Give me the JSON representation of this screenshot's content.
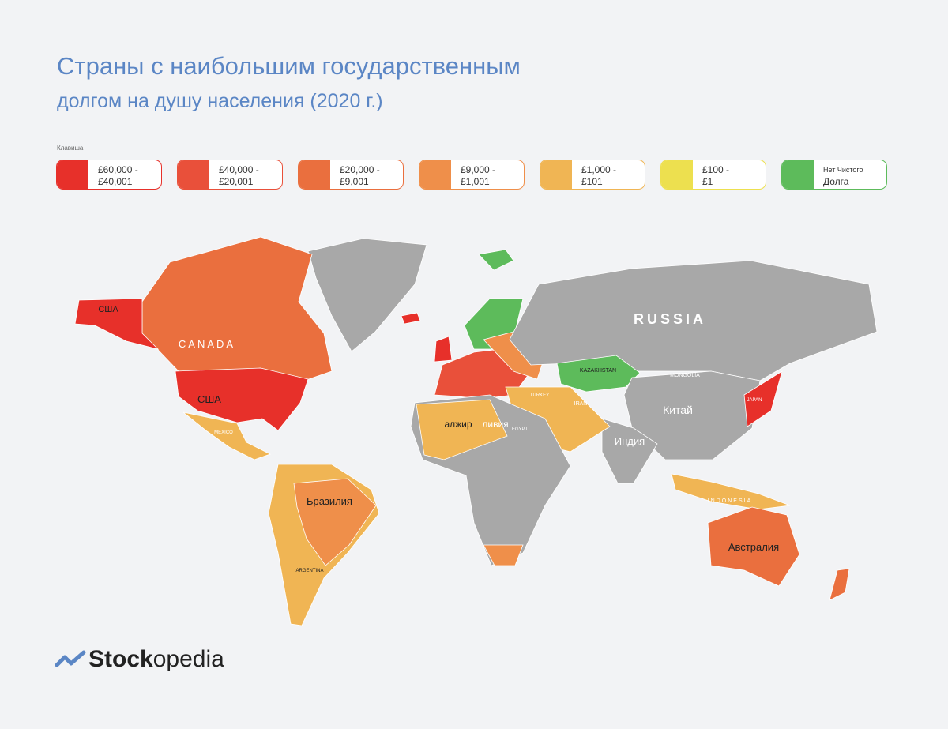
{
  "header": {
    "title": "Страны с наибольшим государственным",
    "subtitle": "долгом на душу населения (2020 г.)"
  },
  "legend": {
    "caption": "Клавиша",
    "items": [
      {
        "lines": [
          "£60,000 -",
          "£40,001"
        ],
        "color": "#e7302a"
      },
      {
        "lines": [
          "£40,000 -",
          "£20,001"
        ],
        "color": "#e9503a"
      },
      {
        "lines": [
          "£20,000 -",
          "£9,001"
        ],
        "color": "#ea6f3e"
      },
      {
        "lines": [
          "£9,000 -",
          "£1,001"
        ],
        "color": "#ef8f4a"
      },
      {
        "lines": [
          "£1,000 -",
          "£101"
        ],
        "color": "#f0b554"
      },
      {
        "lines": [
          "£100 -",
          "£1"
        ],
        "color": "#ede04f"
      },
      {
        "lines": [
          "Нет Чистого",
          "Долга"
        ],
        "color": "#5dbb5b"
      }
    ]
  },
  "map": {
    "labels": [
      "США",
      "CANADA",
      "США",
      "RUSSIA",
      "Китай",
      "Индия",
      "Бразилия",
      "Австралия",
      "алжир",
      "ливия",
      "KAZAKHSTAN",
      "MONGOLIA",
      "MEXICO",
      "ARGENTINA",
      "INDONESIA",
      "JAPAN",
      "IRAN",
      "TURKEY",
      "EGYPT"
    ]
  },
  "logo": {
    "bold": "Stock",
    "rest": "opedia"
  }
}
